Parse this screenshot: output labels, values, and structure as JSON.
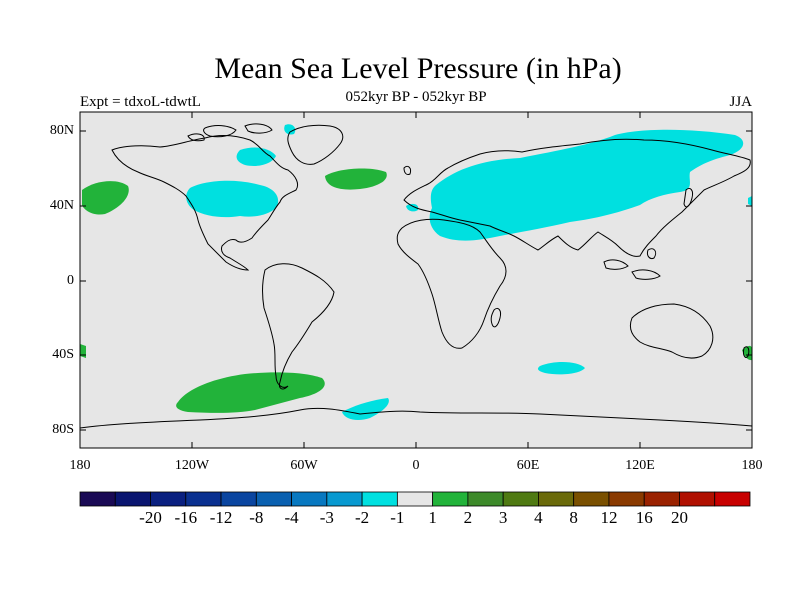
{
  "title": "Mean Sea Level Pressure (in hPa)",
  "subtitle": "052kyr BP - 052kyr BP",
  "left_label": "Expt = tdxoL-tdwtL",
  "right_label": "JJA",
  "axes": {
    "y_ticks": [
      "80N",
      "40N",
      "0",
      "40S",
      "80S"
    ],
    "x_ticks": [
      "180",
      "120W",
      "60W",
      "0",
      "60E",
      "120E",
      "180"
    ]
  },
  "colors": {
    "background": "#e6e6e6",
    "negative_minus2_minus1": "#00e0e0",
    "positive_1_2": "#22b33a",
    "coastline": "#000000"
  },
  "colorbar": {
    "colors": [
      "#1a0a55",
      "#0a1570",
      "#0a2080",
      "#0a3090",
      "#0a45a0",
      "#0a60b0",
      "#0878c0",
      "#0899d0",
      "#00e0e0",
      "#e6e6e6",
      "#22b33a",
      "#3d8a2a",
      "#4f7a12",
      "#6a6a0a",
      "#7a5000",
      "#8a3a00",
      "#9a2200",
      "#b01000",
      "#c80000"
    ],
    "labels": [
      "-20",
      "-16",
      "-12",
      "-8",
      "-4",
      "-3",
      "-2",
      "-1",
      "1",
      "2",
      "3",
      "4",
      "8",
      "12",
      "16",
      "20"
    ]
  }
}
